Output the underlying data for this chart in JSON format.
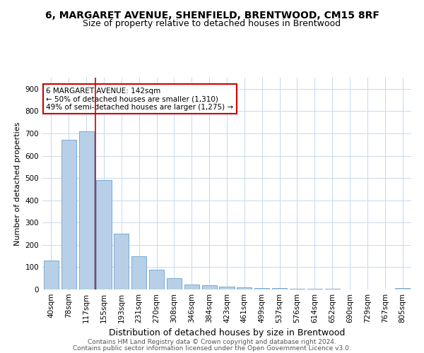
{
  "title": "6, MARGARET AVENUE, SHENFIELD, BRENTWOOD, CM15 8RF",
  "subtitle": "Size of property relative to detached houses in Brentwood",
  "xlabel": "Distribution of detached houses by size in Brentwood",
  "ylabel": "Number of detached properties",
  "footer_line1": "Contains HM Land Registry data © Crown copyright and database right 2024.",
  "footer_line2": "Contains public sector information licensed under the Open Government Licence v3.0.",
  "bar_labels": [
    "40sqm",
    "78sqm",
    "117sqm",
    "155sqm",
    "193sqm",
    "231sqm",
    "270sqm",
    "308sqm",
    "346sqm",
    "384sqm",
    "423sqm",
    "461sqm",
    "499sqm",
    "537sqm",
    "576sqm",
    "614sqm",
    "652sqm",
    "690sqm",
    "729sqm",
    "767sqm",
    "805sqm"
  ],
  "bar_values": [
    130,
    670,
    710,
    490,
    250,
    148,
    88,
    50,
    22,
    20,
    14,
    10,
    7,
    5,
    4,
    3,
    2,
    1,
    1,
    1,
    7
  ],
  "bar_color": "#b8cfe8",
  "bar_edge_color": "#7aaad0",
  "highlight_bar_index": 2,
  "highlight_color": "#cc0000",
  "annotation_text_line1": "6 MARGARET AVENUE: 142sqm",
  "annotation_text_line2": "← 50% of detached houses are smaller (1,310)",
  "annotation_text_line3": "49% of semi-detached houses are larger (1,275) →",
  "annotation_box_color": "#cc0000",
  "ylim": [
    0,
    950
  ],
  "yticks": [
    0,
    100,
    200,
    300,
    400,
    500,
    600,
    700,
    800,
    900
  ],
  "grid_color": "#c8d8ec",
  "background_color": "#ffffff",
  "title_fontsize": 10,
  "subtitle_fontsize": 9,
  "xlabel_fontsize": 9,
  "ylabel_fontsize": 8,
  "tick_fontsize": 7.5,
  "annotation_fontsize": 7.5,
  "footer_fontsize": 6.5
}
